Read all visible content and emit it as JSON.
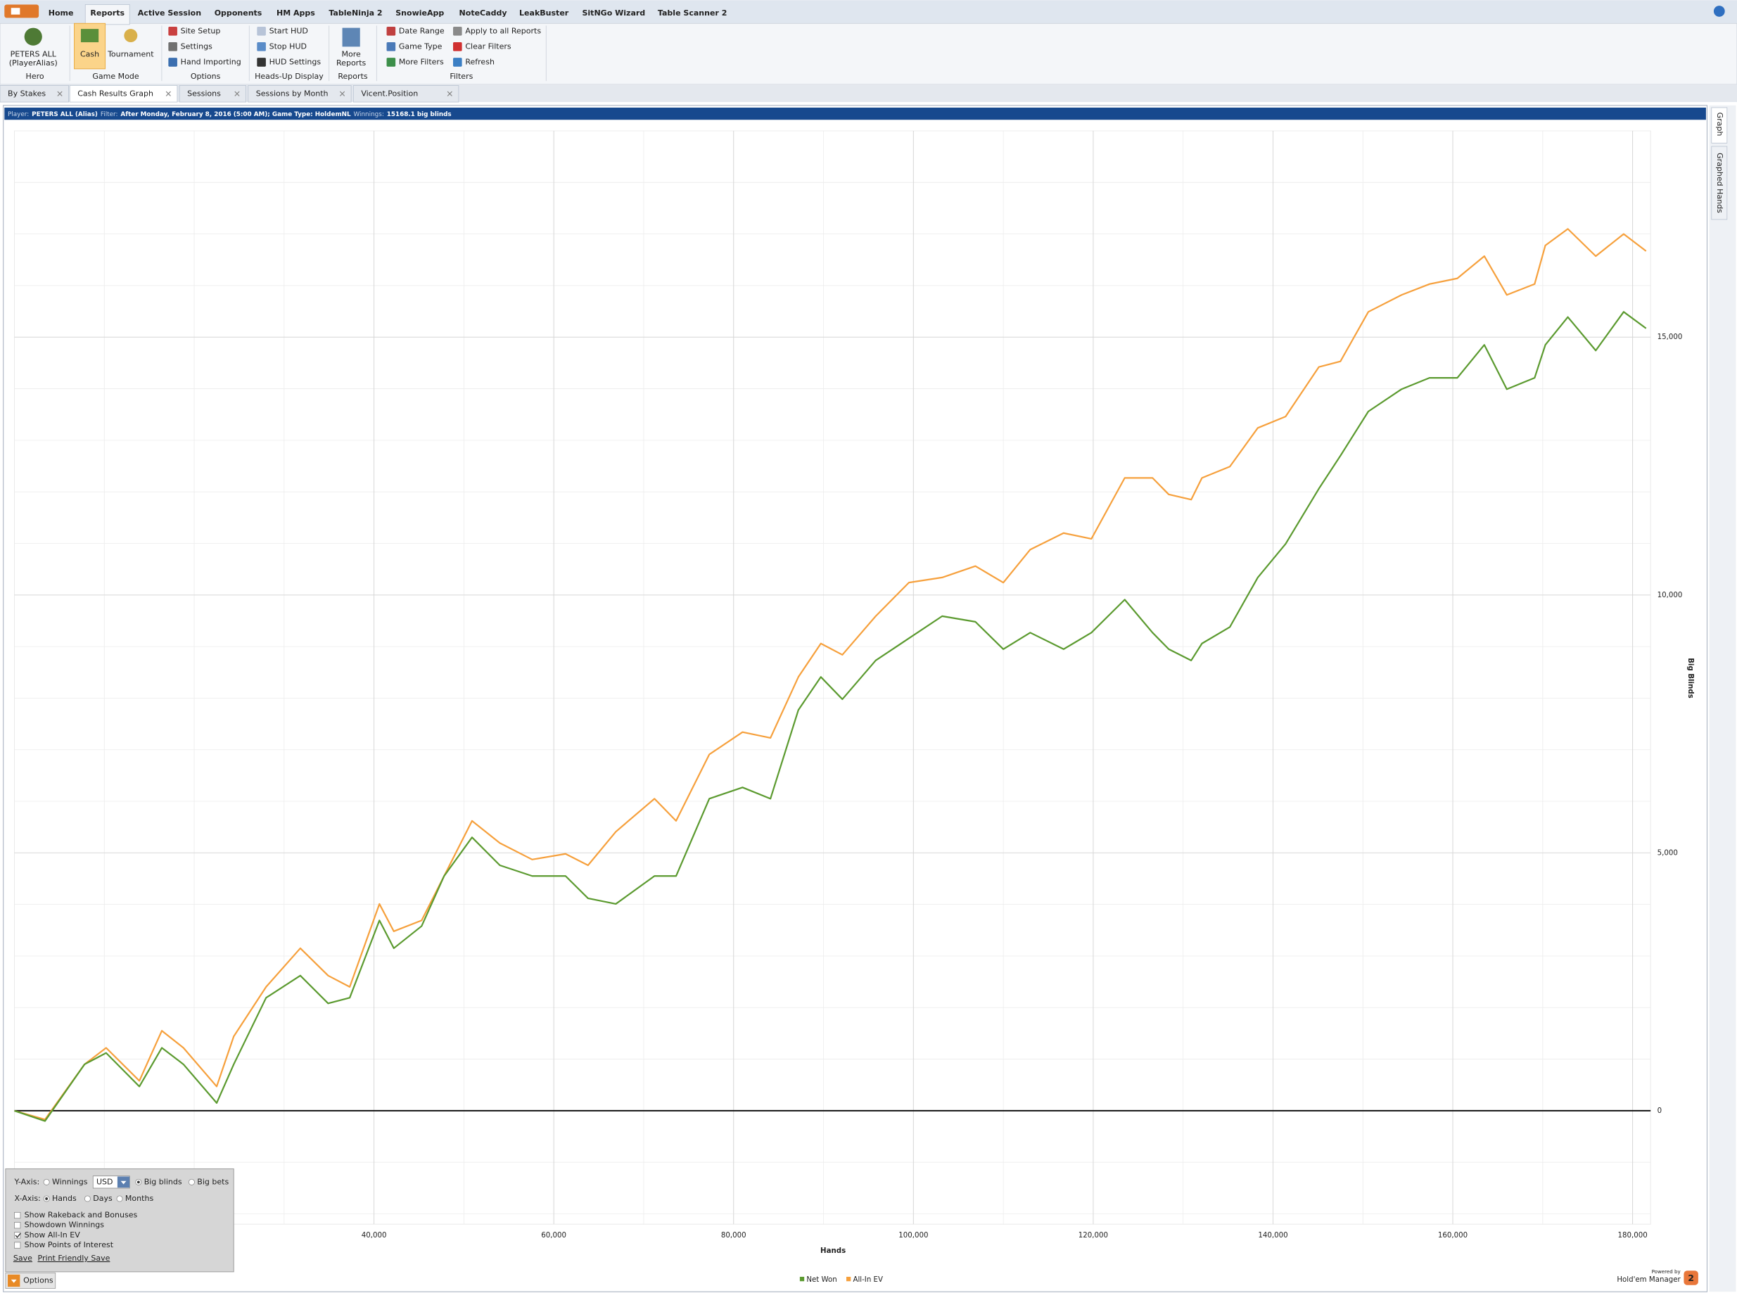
{
  "ribbon": {
    "tabs": [
      "Home",
      "Reports",
      "Active Session",
      "Opponents",
      "HM Apps",
      "TableNinja 2",
      "SnowieApp",
      "NoteCaddy",
      "LeakBuster",
      "SitNGo Wizard",
      "Table Scanner 2"
    ],
    "groups": [
      {
        "label": "Hero",
        "items": [
          "PETERS ALL",
          "(PlayerAlias)"
        ]
      },
      {
        "label": "Game Mode",
        "items": [
          "Cash",
          "Tournament"
        ]
      },
      {
        "label": "Options",
        "items": [
          "Site Setup",
          "Settings",
          "Hand Importing"
        ]
      },
      {
        "label": "Heads-Up Display",
        "items": [
          "Start HUD",
          "Stop HUD",
          "HUD Settings"
        ]
      },
      {
        "label": "Reports",
        "items": [
          "More",
          "Reports"
        ]
      },
      {
        "label": "Filters",
        "items": [
          "Date Range",
          "Game Type",
          "More Filters",
          "Apply to all Reports",
          "Clear Filters",
          "Refresh"
        ]
      }
    ]
  },
  "doc_tabs": [
    "By Stakes",
    "Cash Results Graph",
    "Sessions",
    "Sessions by Month",
    "Vicent.Position"
  ],
  "filter_bar": {
    "player_label": "Player:",
    "player": "PETERS ALL (Alias)",
    "filter_label": "Filter:",
    "filter": "After Monday, February 8, 2016 (5:00 AM); Game Type: HoldemNL",
    "winnings_label": "Winnings:",
    "winnings": "15168.1 big blinds"
  },
  "side_tabs": [
    "Graph",
    "Graphed Hands"
  ],
  "chart_data": {
    "type": "line",
    "x_label": "Hands",
    "y_label": "Big Blinds",
    "x": [
      0,
      3400,
      7800,
      10200,
      13900,
      16400,
      18800,
      22500,
      24400,
      28000,
      31800,
      34900,
      37300,
      40600,
      42200,
      45300,
      47800,
      50900,
      54000,
      57600,
      61300,
      63800,
      66900,
      71200,
      73600,
      77300,
      81000,
      84100,
      87200,
      89700,
      92100,
      95800,
      99500,
      103200,
      106900,
      110000,
      113000,
      116700,
      119800,
      123500,
      126600,
      128400,
      130900,
      132100,
      135200,
      138300,
      141400,
      145100,
      147500,
      150600,
      154300,
      157400,
      160500,
      163500,
      166000,
      169100,
      170300,
      172800,
      175900,
      179000,
      181500
    ],
    "series": [
      {
        "name": "Net Won",
        "color": "#5b9a2f",
        "values": [
          0,
          -200,
          900,
          1120,
          470,
          1220,
          900,
          150,
          900,
          2190,
          2620,
          2080,
          2190,
          3690,
          3150,
          3580,
          4550,
          5300,
          4760,
          4550,
          4550,
          4120,
          4010,
          4550,
          4550,
          6050,
          6270,
          6050,
          7770,
          8410,
          7980,
          8730,
          9160,
          9590,
          9480,
          8950,
          9270,
          8950,
          9270,
          9910,
          9270,
          8950,
          8730,
          9060,
          9380,
          10340,
          10990,
          12060,
          12700,
          13560,
          13990,
          14210,
          14210,
          14850,
          13990,
          14210,
          14850,
          15390,
          14740,
          15490,
          15170
        ]
      },
      {
        "name": "All-In EV",
        "color": "#f6a03c",
        "values": [
          0,
          -170,
          900,
          1220,
          580,
          1550,
          1220,
          470,
          1440,
          2400,
          3150,
          2620,
          2400,
          4010,
          3480,
          3690,
          4550,
          5620,
          5190,
          4870,
          4980,
          4760,
          5410,
          6050,
          5620,
          6910,
          7340,
          7230,
          8410,
          9060,
          8840,
          9590,
          10240,
          10340,
          10560,
          10240,
          10880,
          11200,
          11090,
          12270,
          12270,
          11950,
          11850,
          12270,
          12490,
          13240,
          13460,
          14420,
          14530,
          15490,
          15820,
          16030,
          16140,
          16570,
          15820,
          16030,
          16780,
          17100,
          16570,
          17000,
          16670
        ]
      }
    ],
    "xlim": [
      0,
      182000
    ],
    "ylim": [
      -2200,
      19000
    ],
    "xticks": [
      {
        "value": 40000,
        "label": "40,000"
      },
      {
        "value": 60000,
        "label": "60,000"
      },
      {
        "value": 80000,
        "label": "80,000"
      },
      {
        "value": 100000,
        "label": "100,000"
      },
      {
        "value": 120000,
        "label": "120,000"
      },
      {
        "value": 140000,
        "label": "140,000"
      },
      {
        "value": 160000,
        "label": "160,000"
      },
      {
        "value": 180000,
        "label": "180,000"
      }
    ],
    "yticks": [
      0,
      {
        "value": 5000,
        "label": "5,000"
      },
      {
        "value": 10000,
        "label": "10,000"
      },
      {
        "value": 15000,
        "label": "15,000"
      }
    ],
    "grid": true
  },
  "options_panel": {
    "y_axis_label": "Y-Axis:",
    "y_options": [
      "Winnings",
      "Big blinds",
      "Big bets"
    ],
    "currency": "USD",
    "x_axis_label": "X-Axis:",
    "x_options": [
      "Hands",
      "Days",
      "Months"
    ],
    "checkboxes": [
      "Show Rakeback and Bonuses",
      "Showdown Winnings",
      "Show All-In EV",
      "Show Points of Interest"
    ],
    "links": [
      "Save",
      "Print Friendly Save"
    ],
    "toggle": "Options"
  },
  "branding": {
    "powered": "Powered by",
    "product": "Hold'em Manager",
    "badge": "2"
  }
}
